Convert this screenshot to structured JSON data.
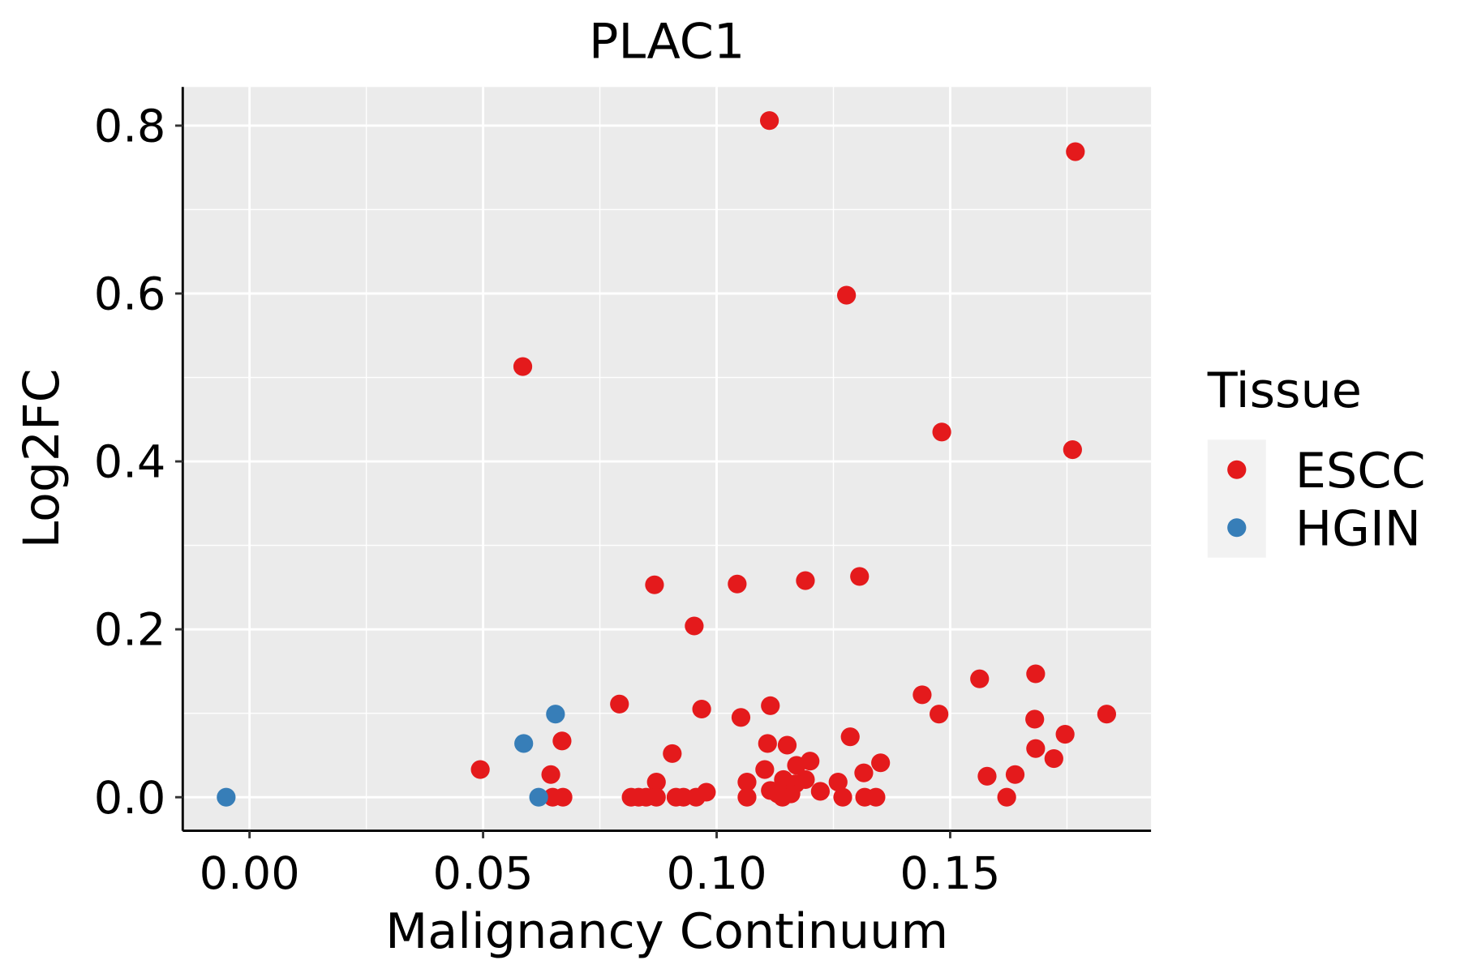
{
  "chart_data": {
    "type": "scatter",
    "title": "PLAC1",
    "xlabel": "Malignancy Continuum",
    "ylabel": "Log2FC",
    "xlim": [
      -0.0143,
      0.193
    ],
    "ylim": [
      -0.04,
      0.846
    ],
    "xticks": [
      0.0,
      0.05,
      0.1,
      0.15
    ],
    "xtick_labels": [
      "0.00",
      "0.05",
      "0.10",
      "0.15"
    ],
    "yticks": [
      0.0,
      0.2,
      0.4,
      0.6,
      0.8
    ],
    "ytick_labels": [
      "0.0",
      "0.2",
      "0.4",
      "0.6",
      "0.8"
    ],
    "grid": true,
    "legend": {
      "title": "Tissue",
      "placement": "right"
    },
    "series": [
      {
        "name": "ESCC",
        "color": "#E41A1C",
        "points": [
          [
            0.1113,
            0.806
          ],
          [
            0.1768,
            0.769
          ],
          [
            0.1278,
            0.598
          ],
          [
            0.0585,
            0.513
          ],
          [
            0.1482,
            0.435
          ],
          [
            0.1762,
            0.414
          ],
          [
            0.0867,
            0.253
          ],
          [
            0.1044,
            0.254
          ],
          [
            0.119,
            0.258
          ],
          [
            0.1306,
            0.263
          ],
          [
            0.0952,
            0.204
          ],
          [
            0.1563,
            0.141
          ],
          [
            0.1683,
            0.147
          ],
          [
            0.144,
            0.122
          ],
          [
            0.0792,
            0.111
          ],
          [
            0.1115,
            0.109
          ],
          [
            0.0968,
            0.105
          ],
          [
            0.1476,
            0.099
          ],
          [
            0.1835,
            0.099
          ],
          [
            0.1052,
            0.095
          ],
          [
            0.1681,
            0.093
          ],
          [
            0.1286,
            0.072
          ],
          [
            0.1746,
            0.075
          ],
          [
            0.0669,
            0.067
          ],
          [
            0.1109,
            0.064
          ],
          [
            0.1151,
            0.062
          ],
          [
            0.1683,
            0.058
          ],
          [
            0.0905,
            0.052
          ],
          [
            0.1722,
            0.046
          ],
          [
            0.12,
            0.043
          ],
          [
            0.1351,
            0.041
          ],
          [
            0.1171,
            0.038
          ],
          [
            0.1103,
            0.033
          ],
          [
            0.0494,
            0.033
          ],
          [
            0.1315,
            0.029
          ],
          [
            0.0645,
            0.027
          ],
          [
            0.1639,
            0.027
          ],
          [
            0.1579,
            0.025
          ],
          [
            0.1143,
            0.021
          ],
          [
            0.119,
            0.021
          ],
          [
            0.0871,
            0.018
          ],
          [
            0.1065,
            0.018
          ],
          [
            0.126,
            0.018
          ],
          [
            0.1169,
            0.016
          ],
          [
            0.1115,
            0.008
          ],
          [
            0.1222,
            0.007
          ],
          [
            0.0978,
            0.006
          ],
          [
            0.1131,
            0.004
          ],
          [
            0.1159,
            0.004
          ],
          [
            0.0649,
            0
          ],
          [
            0.0671,
            0
          ],
          [
            0.0817,
            0
          ],
          [
            0.0833,
            0
          ],
          [
            0.0849,
            0
          ],
          [
            0.0871,
            0
          ],
          [
            0.0913,
            0
          ],
          [
            0.0929,
            0
          ],
          [
            0.0956,
            0
          ],
          [
            0.1065,
            0
          ],
          [
            0.1141,
            0
          ],
          [
            0.127,
            0
          ],
          [
            0.1317,
            0
          ],
          [
            0.1341,
            0
          ],
          [
            0.1621,
            0
          ]
        ]
      },
      {
        "name": "HGIN",
        "color": "#377EB8",
        "points": [
          [
            -0.005,
            0
          ],
          [
            0.0619,
            0
          ],
          [
            0.0587,
            0.064
          ],
          [
            0.0655,
            0.099
          ]
        ]
      }
    ]
  }
}
